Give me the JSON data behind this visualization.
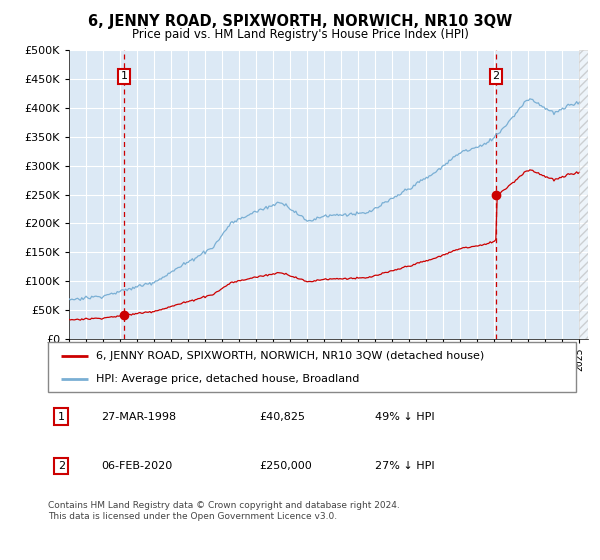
{
  "title": "6, JENNY ROAD, SPIXWORTH, NORWICH, NR10 3QW",
  "subtitle": "Price paid vs. HM Land Registry's House Price Index (HPI)",
  "legend_label_red": "6, JENNY ROAD, SPIXWORTH, NORWICH, NR10 3QW (detached house)",
  "legend_label_blue": "HPI: Average price, detached house, Broadland",
  "annotation1_label": "1",
  "annotation1_date": "27-MAR-1998",
  "annotation1_price": "£40,825",
  "annotation1_hpi": "49% ↓ HPI",
  "annotation2_label": "2",
  "annotation2_date": "06-FEB-2020",
  "annotation2_price": "£250,000",
  "annotation2_hpi": "27% ↓ HPI",
  "footer": "Contains HM Land Registry data © Crown copyright and database right 2024.\nThis data is licensed under the Open Government Licence v3.0.",
  "red_color": "#cc0000",
  "blue_color": "#7aafd4",
  "background_color": "#dce9f5",
  "vline_color": "#cc0000",
  "box_color": "#cc0000",
  "grid_color": "#ffffff",
  "ylim": [
    0,
    500000
  ],
  "yticks": [
    0,
    50000,
    100000,
    150000,
    200000,
    250000,
    300000,
    350000,
    400000,
    450000,
    500000
  ],
  "sale1_year": 1998.23,
  "sale1_price": 40825,
  "sale2_year": 2020.09,
  "sale2_price": 250000,
  "xmin": 1995,
  "xmax": 2025.5
}
